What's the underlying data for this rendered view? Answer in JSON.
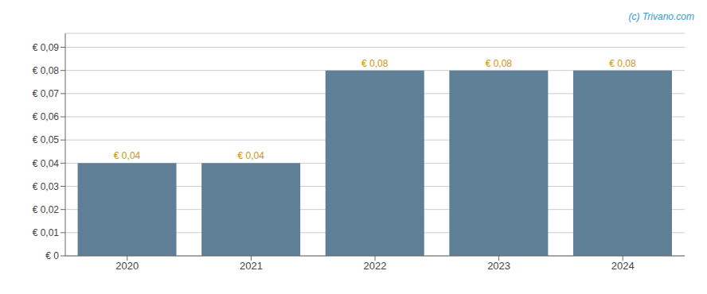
{
  "chart_data": {
    "type": "bar",
    "categories": [
      "2020",
      "2021",
      "2022",
      "2023",
      "2024"
    ],
    "values": [
      0.04,
      0.04,
      0.08,
      0.08,
      0.08
    ],
    "value_labels": [
      "€ 0,04",
      "€ 0,04",
      "€ 0,08",
      "€ 0,08",
      "€ 0,08"
    ],
    "data_labels": true,
    "color": "#5f7f96",
    "ylim": [
      0,
      0.096
    ],
    "yticks": [
      {
        "value": 0,
        "label": "€ 0"
      },
      {
        "value": 0.01,
        "label": "€ 0,01"
      },
      {
        "value": 0.02,
        "label": "€ 0,02"
      },
      {
        "value": 0.03,
        "label": "€ 0,03"
      },
      {
        "value": 0.04,
        "label": "€ 0,04"
      },
      {
        "value": 0.05,
        "label": "€ 0,05"
      },
      {
        "value": 0.06,
        "label": "€ 0,06"
      },
      {
        "value": 0.07,
        "label": "€ 0,07"
      },
      {
        "value": 0.08,
        "label": "€ 0,08"
      },
      {
        "value": 0.09,
        "label": "€ 0,09"
      }
    ],
    "grid": true,
    "annotations": [
      "(c) Trivano.com"
    ]
  }
}
